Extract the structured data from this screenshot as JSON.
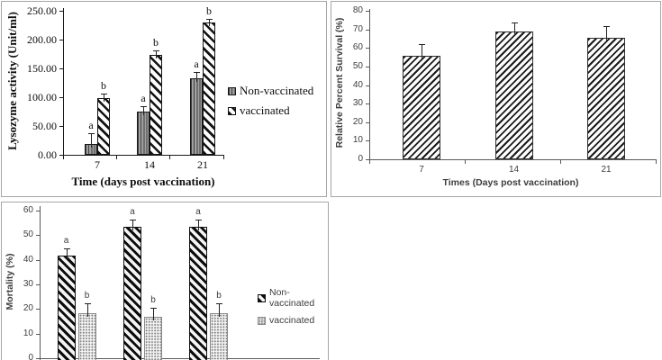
{
  "figure": {
    "background": "#ffffff",
    "panel_border_color": "#a6a6a6",
    "axis_color_serif_chart": "#1a1a1a",
    "axis_color_sans_charts": "#595959",
    "bar_ink_color": "#111111"
  },
  "chart_data": [
    {
      "id": "lysozyme-activity",
      "type": "bar",
      "xlabel": "Time (days post vaccination)",
      "ylabel": "Lysozyme activity (Unit/ml)",
      "categories": [
        "7",
        "14",
        "21"
      ],
      "ylim": [
        0,
        250
      ],
      "ytick_step": 50,
      "ytick_labels": [
        "0.00",
        "50.00",
        "100.00",
        "150.00",
        "200.00",
        "250.00"
      ],
      "grid": false,
      "legend_position": "right",
      "series": [
        {
          "name": "Non-vaccinated",
          "pattern": "vertical-lines",
          "values": [
            18,
            75,
            133
          ],
          "errors": [
            20,
            9,
            11
          ],
          "sig_letters": [
            "a",
            "a",
            "a"
          ]
        },
        {
          "name": "vaccinated",
          "pattern": "diagonal-down",
          "values": [
            99,
            173,
            229
          ],
          "errors": [
            7,
            8,
            7
          ],
          "sig_letters": [
            "b",
            "b",
            "b"
          ]
        }
      ]
    },
    {
      "id": "relative-percent-survival",
      "type": "bar",
      "xlabel": "Times (Days post vaccination)",
      "ylabel": "Relative Percent Survival (%)",
      "categories": [
        "7",
        "14",
        "21"
      ],
      "ylim": [
        0,
        80
      ],
      "ytick_step": 10,
      "ytick_labels": [
        "0",
        "10",
        "20",
        "30",
        "40",
        "50",
        "60",
        "70",
        "80"
      ],
      "grid": false,
      "legend_position": "none",
      "series": [
        {
          "name": "",
          "pattern": "diagonal-up",
          "values": [
            56,
            69,
            65.5
          ],
          "errors": [
            6,
            4.5,
            6.5
          ],
          "sig_letters": [
            "",
            "",
            ""
          ]
        }
      ]
    },
    {
      "id": "mortality",
      "type": "bar",
      "xlabel": "",
      "xaxis_labels_cropped": true,
      "ylabel": "Mortality (%)",
      "categories": [],
      "ylim": [
        0,
        60
      ],
      "ytick_step": 10,
      "ytick_labels": [
        "0",
        "10",
        "20",
        "30",
        "40",
        "50",
        "60"
      ],
      "grid": false,
      "legend_position": "right",
      "series": [
        {
          "name": "Non-vaccinated",
          "pattern": "diagonal-down-dense",
          "values": [
            41.7,
            53.3,
            53.3
          ],
          "errors": [
            3,
            3,
            3
          ],
          "sig_letters": [
            "a",
            "a",
            "a"
          ]
        },
        {
          "name": "vaccinated",
          "pattern": "dots",
          "values": [
            18.3,
            16.7,
            18.3
          ],
          "errors": [
            4,
            3.8,
            4
          ],
          "sig_letters": [
            "b",
            "b",
            "b"
          ]
        }
      ]
    }
  ]
}
